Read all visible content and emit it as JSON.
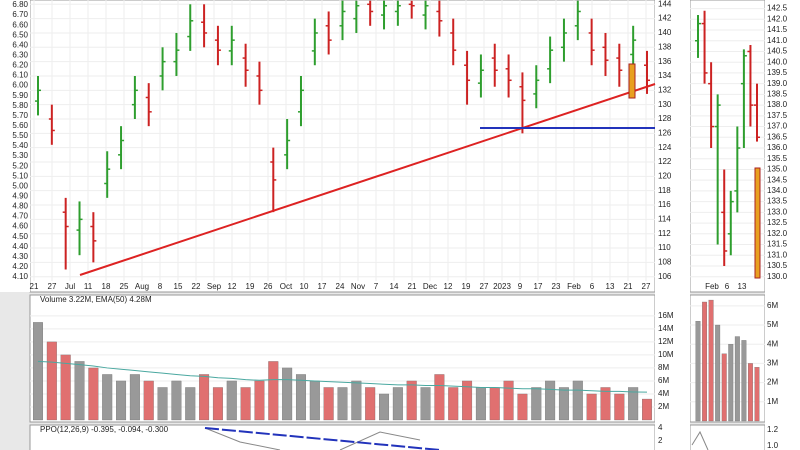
{
  "chart_data": [
    {
      "type": "ohlc",
      "ylim": [
        105.4,
        144.6
      ],
      "yticks": [
        106,
        108,
        110,
        112,
        114,
        116,
        118,
        120,
        122,
        124,
        126,
        128,
        130,
        132,
        134,
        136,
        138,
        140,
        142,
        144
      ],
      "y2lim": [
        4.06,
        6.85
      ],
      "y2ticks": [
        {
          "value": 4.1,
          "label": "4.10"
        },
        {
          "value": 4.2,
          "label": "4.20"
        },
        {
          "value": 4.3,
          "label": "4.30"
        },
        {
          "value": 4.4,
          "label": "4.40"
        },
        {
          "value": 4.5,
          "label": "4.50"
        },
        {
          "value": 4.6,
          "label": "4.60"
        },
        {
          "value": 4.7,
          "label": "4.70"
        },
        {
          "value": 4.8,
          "label": "4.80"
        },
        {
          "value": 4.9,
          "label": "4.90"
        },
        {
          "value": 5.0,
          "label": "5.00"
        },
        {
          "value": 5.1,
          "label": "5.10"
        },
        {
          "value": 5.2,
          "label": "5.20"
        },
        {
          "value": 5.3,
          "label": "5.30"
        },
        {
          "value": 5.4,
          "label": "5.40"
        },
        {
          "value": 5.5,
          "label": "5.50"
        },
        {
          "value": 5.6,
          "label": "5.60"
        },
        {
          "value": 5.7,
          "label": "5.70"
        },
        {
          "value": 5.8,
          "label": "5.80"
        },
        {
          "value": 5.9,
          "label": "5.90"
        },
        {
          "value": 6.0,
          "label": "6.00"
        },
        {
          "value": 6.1,
          "label": "6.10"
        },
        {
          "value": 6.2,
          "label": "6.20"
        },
        {
          "value": 6.3,
          "label": "6.30"
        },
        {
          "value": 6.4,
          "label": "6.40"
        },
        {
          "value": 6.5,
          "label": "6.50"
        },
        {
          "value": 6.6,
          "label": "6.60"
        },
        {
          "value": 6.7,
          "label": "6.70"
        },
        {
          "value": 6.8,
          "label": "6.80"
        }
      ],
      "date_labels": [
        "21",
        "27",
        "Jul",
        "11",
        "18",
        "25",
        "Aug",
        "8",
        "15",
        "22",
        "Sep",
        "12",
        "19",
        "26",
        "Oct",
        "10",
        "17",
        "24",
        "Nov",
        "7",
        "14",
        "21",
        "Dec",
        "12",
        "19",
        "27",
        "2023",
        "9",
        "17",
        "23",
        "Feb",
        "6",
        "13",
        "21",
        "27"
      ],
      "up_color": "#2e9e2e",
      "down_color": "#cc2222",
      "open": [
        130.5,
        128,
        115,
        112.5,
        113,
        119,
        123,
        130,
        131,
        134,
        136,
        139.5,
        141.5,
        139,
        137.5,
        136.5,
        134,
        122,
        123,
        129,
        137.5,
        141,
        141,
        142,
        144,
        142.5,
        143,
        144,
        142.5,
        143,
        140,
        135.5,
        133,
        136.5,
        135,
        132.5,
        131.5,
        135,
        138,
        141,
        140,
        138,
        136.5,
        137,
        135.5
      ],
      "high": [
        134,
        130,
        117,
        116.5,
        115,
        123.5,
        127,
        134,
        133,
        138,
        140,
        144,
        144,
        141,
        141,
        138.5,
        136,
        124,
        128,
        134,
        142,
        143,
        144.5,
        144.5,
        144.5,
        144.5,
        144.5,
        144.5,
        144.5,
        144.5,
        142,
        137.5,
        137,
        138.5,
        137,
        134.5,
        135.5,
        139.5,
        142,
        144.5,
        142,
        140,
        138.5,
        141,
        137.5
      ],
      "low": [
        128.5,
        124.4,
        107,
        109,
        108,
        117,
        121,
        128,
        127,
        132,
        134,
        137.5,
        138,
        135.5,
        135.5,
        132.5,
        130,
        115,
        121,
        127,
        135.5,
        137,
        139,
        140,
        141,
        140.5,
        141,
        142,
        140.5,
        139.5,
        135.5,
        130,
        131,
        132.5,
        131,
        126,
        129.5,
        133,
        136,
        139,
        135.5,
        134,
        132.5,
        135,
        131.5
      ],
      "close": [
        132,
        126.4,
        113,
        114,
        111,
        121,
        125,
        132,
        129,
        136,
        137.6,
        141.7,
        140,
        137.6,
        139,
        134.8,
        132,
        119.5,
        125,
        132,
        140,
        139,
        143,
        143.8,
        143,
        143.8,
        143.8,
        143.8,
        143.8,
        141.7,
        137.6,
        133.4,
        134.8,
        134.8,
        133.4,
        130.6,
        133.4,
        137.6,
        140,
        143,
        137.6,
        136.2,
        134.8,
        139,
        133.4
      ]
    },
    {
      "type": "ohlc",
      "ylim": [
        129.8,
        142.9
      ],
      "yticks": [
        {
          "value": 130,
          "label": "130.0"
        },
        130.5,
        {
          "value": 131,
          "label": "131.0"
        },
        131.5,
        {
          "value": 132,
          "label": "132.0"
        },
        132.5,
        {
          "value": 133,
          "label": "133.0"
        },
        133.5,
        {
          "value": 134,
          "label": "134.0"
        },
        134.5,
        {
          "value": 135,
          "label": "135.0"
        },
        135.5,
        {
          "value": 136,
          "label": "136.0"
        },
        136.5,
        {
          "value": 137,
          "label": "137.0"
        },
        137.5,
        {
          "value": 138,
          "label": "138.0"
        },
        138.5,
        {
          "value": 139,
          "label": "139.0"
        },
        139.5,
        {
          "value": 140,
          "label": "140.0"
        },
        140.5,
        {
          "value": 141,
          "label": "141.0"
        },
        141.5,
        {
          "value": 142,
          "label": "142.0"
        },
        142.5
      ],
      "date_labels": [
        "Feb",
        "6",
        "13"
      ],
      "up_color": "#2e9e2e",
      "down_color": "#cc2222",
      "open": [
        141,
        141.8,
        139,
        137,
        133,
        132,
        134,
        139,
        140.5,
        138
      ],
      "high": [
        142.2,
        142.4,
        140,
        138.5,
        135,
        134,
        137,
        140.6,
        140.8,
        139
      ],
      "low": [
        140.2,
        139,
        136,
        131.5,
        130.5,
        131,
        133,
        136,
        137,
        136.3
      ],
      "close": [
        141.8,
        139.5,
        137,
        138,
        131.2,
        133.5,
        136,
        140.3,
        138,
        136.5
      ]
    },
    {
      "type": "volume",
      "title": "Volume 3.22M, EMA(50) 4.28M",
      "ylim": [
        0,
        18900000
      ],
      "yticks": [
        {
          "value": 2000000,
          "label": "2M"
        },
        {
          "value": 4000000,
          "label": "4M"
        },
        {
          "value": 6000000,
          "label": "6M"
        },
        {
          "value": 8000000,
          "label": "8M"
        },
        {
          "value": 10000000,
          "label": "10M"
        },
        {
          "value": 12000000,
          "label": "12M"
        },
        {
          "value": 14000000,
          "label": "14M"
        },
        {
          "value": 16000000,
          "label": "16M"
        }
      ],
      "up_color": "#999999",
      "down_color": "#e07070",
      "ema_color": "#4aa8a0",
      "values": [
        15000000,
        12000000,
        10000000,
        9000000,
        8000000,
        7000000,
        6000000,
        7000000,
        6000000,
        5000000,
        6000000,
        5000000,
        7000000,
        5000000,
        6000000,
        5000000,
        6000000,
        9000000,
        8000000,
        7000000,
        6000000,
        5000000,
        5000000,
        6000000,
        5000000,
        4000000,
        5000000,
        6000000,
        5000000,
        7000000,
        5000000,
        6000000,
        5000000,
        5000000,
        6000000,
        4000000,
        5000000,
        6000000,
        5000000,
        6000000,
        4000000,
        5000000,
        4000000,
        5000000,
        3220000
      ],
      "ema": [
        9000000,
        8900000,
        8700000,
        8500000,
        8300000,
        8000000,
        7800000,
        7600000,
        7400000,
        7200000,
        7000000,
        6800000,
        6700000,
        6500000,
        6400000,
        6200000,
        6100000,
        6200000,
        6200000,
        6100000,
        6000000,
        5900000,
        5800000,
        5700000,
        5600000,
        5500000,
        5400000,
        5400000,
        5300000,
        5300000,
        5200000,
        5100000,
        5000000,
        5000000,
        4900000,
        4800000,
        4800000,
        4700000,
        4600000,
        4600000,
        4500000,
        4400000,
        4400000,
        4300000,
        4280000
      ]
    },
    {
      "type": "volume",
      "ylim": [
        0,
        6460000
      ],
      "yticks": [
        {
          "value": 1000000,
          "label": "1M"
        },
        {
          "value": 2000000,
          "label": "2M"
        },
        {
          "value": 3000000,
          "label": "3M"
        },
        {
          "value": 4000000,
          "label": "4M"
        },
        {
          "value": 5000000,
          "label": "5M"
        },
        {
          "value": 6000000,
          "label": "6M"
        }
      ],
      "up_color": "#999999",
      "down_color": "#e07070",
      "values": [
        5200000,
        6200000,
        6300000,
        5000000,
        3500000,
        4000000,
        4400000,
        4200000,
        3000000,
        2800000
      ]
    },
    {
      "type": "indicator",
      "title": "PPO(12,26,9) -0.395, -0.094, -0.300",
      "ylim": [
        0.6,
        4.3
      ],
      "yticks": [
        2,
        4
      ]
    },
    {
      "type": "indicator",
      "ylim": [
        0.95,
        1.25
      ],
      "yticks": [
        {
          "value": 1.0,
          "label": "1.0"
        },
        1.2
      ]
    }
  ]
}
